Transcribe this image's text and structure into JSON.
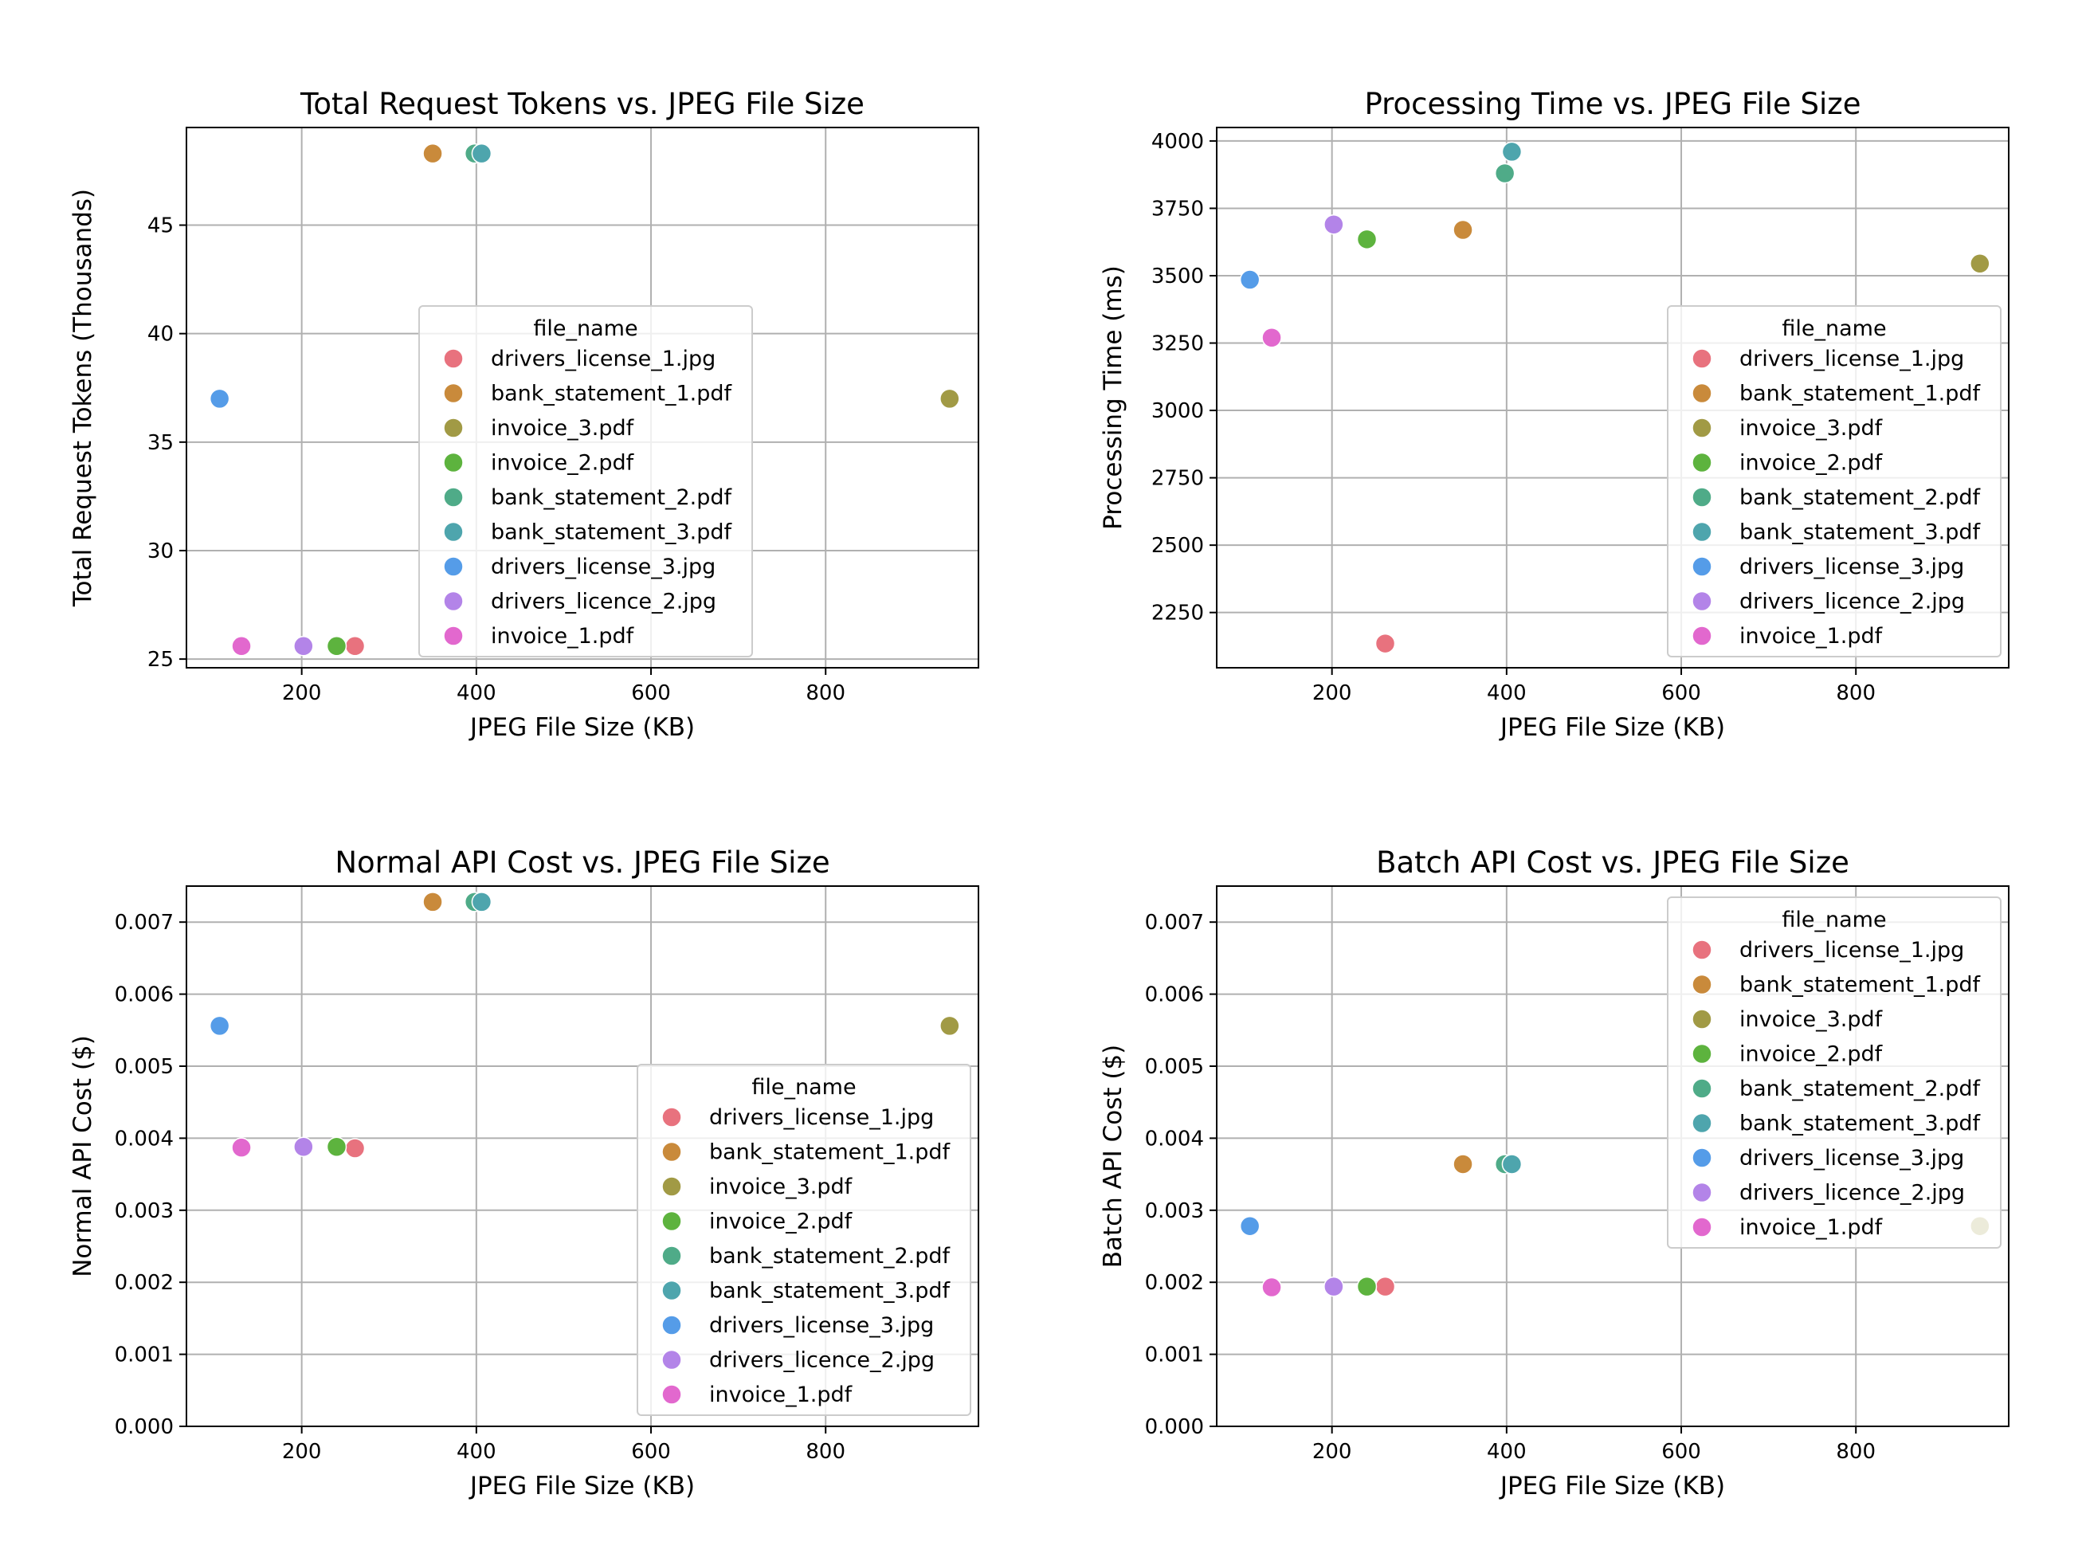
{
  "chart_data": [
    {
      "type": "scatter",
      "title": "Total Request Tokens vs. JPEG File Size",
      "xlabel": "JPEG File Size (KB)",
      "ylabel": "Total Request Tokens (Thousands)",
      "xlim": [
        68,
        975
      ],
      "ylim": [
        24.6,
        49.5
      ],
      "xticks": [
        {
          "v": 200,
          "label": "200"
        },
        {
          "v": 400,
          "label": "400"
        },
        {
          "v": 600,
          "label": "600"
        },
        {
          "v": 800,
          "label": "800"
        }
      ],
      "yticks": [
        {
          "v": 25,
          "label": "25"
        },
        {
          "v": 30,
          "label": "30"
        },
        {
          "v": 35,
          "label": "35"
        },
        {
          "v": 40,
          "label": "40"
        },
        {
          "v": 45,
          "label": "45"
        }
      ],
      "grid": true,
      "legend_title": "file_name",
      "legend_position": "center",
      "series": [
        {
          "name": "drivers_license_1.jpg",
          "color": "#e8727e",
          "x": 261,
          "y": 25.6
        },
        {
          "name": "bank_statement_1.pdf",
          "color": "#c98a3b",
          "x": 350,
          "y": 48.3
        },
        {
          "name": "invoice_3.pdf",
          "color": "#a19a45",
          "x": 942,
          "y": 37.0
        },
        {
          "name": "invoice_2.pdf",
          "color": "#5db33e",
          "x": 240,
          "y": 25.6
        },
        {
          "name": "bank_statement_2.pdf",
          "color": "#4fab88",
          "x": 398,
          "y": 48.3
        },
        {
          "name": "bank_statement_3.pdf",
          "color": "#4ea5ad",
          "x": 406,
          "y": 48.3
        },
        {
          "name": "drivers_license_3.jpg",
          "color": "#559ce8",
          "x": 106,
          "y": 37.0
        },
        {
          "name": "drivers_licence_2.jpg",
          "color": "#b384e8",
          "x": 202,
          "y": 25.6
        },
        {
          "name": "invoice_1.pdf",
          "color": "#e268ce",
          "x": 131,
          "y": 25.6
        }
      ]
    },
    {
      "type": "scatter",
      "title": "Processing Time vs. JPEG File Size",
      "xlabel": "JPEG File Size (KB)",
      "ylabel": "Processing Time (ms)",
      "xlim": [
        68,
        975
      ],
      "ylim": [
        2045,
        4050
      ],
      "xticks": [
        {
          "v": 200,
          "label": "200"
        },
        {
          "v": 400,
          "label": "400"
        },
        {
          "v": 600,
          "label": "600"
        },
        {
          "v": 800,
          "label": "800"
        }
      ],
      "yticks": [
        {
          "v": 2250,
          "label": "2250"
        },
        {
          "v": 2500,
          "label": "2500"
        },
        {
          "v": 2750,
          "label": "2750"
        },
        {
          "v": 3000,
          "label": "3000"
        },
        {
          "v": 3250,
          "label": "3250"
        },
        {
          "v": 3500,
          "label": "3500"
        },
        {
          "v": 3750,
          "label": "3750"
        },
        {
          "v": 4000,
          "label": "4000"
        }
      ],
      "grid": true,
      "legend_title": "file_name",
      "legend_position": "center-right",
      "series": [
        {
          "name": "drivers_license_1.jpg",
          "color": "#e8727e",
          "x": 261,
          "y": 2135
        },
        {
          "name": "bank_statement_1.pdf",
          "color": "#c98a3b",
          "x": 350,
          "y": 3670
        },
        {
          "name": "invoice_3.pdf",
          "color": "#a19a45",
          "x": 942,
          "y": 3545
        },
        {
          "name": "invoice_2.pdf",
          "color": "#5db33e",
          "x": 240,
          "y": 3635
        },
        {
          "name": "bank_statement_2.pdf",
          "color": "#4fab88",
          "x": 398,
          "y": 3880
        },
        {
          "name": "bank_statement_3.pdf",
          "color": "#4ea5ad",
          "x": 406,
          "y": 3960
        },
        {
          "name": "drivers_license_3.jpg",
          "color": "#559ce8",
          "x": 106,
          "y": 3485
        },
        {
          "name": "drivers_licence_2.jpg",
          "color": "#b384e8",
          "x": 202,
          "y": 3690
        },
        {
          "name": "invoice_1.pdf",
          "color": "#e268ce",
          "x": 131,
          "y": 3270
        }
      ]
    },
    {
      "type": "scatter",
      "title": "Normal API Cost vs. JPEG File Size",
      "xlabel": "JPEG File Size (KB)",
      "ylabel": "Normal API Cost ($)",
      "xlim": [
        68,
        975
      ],
      "ylim": [
        0,
        0.0075
      ],
      "xticks": [
        {
          "v": 200,
          "label": "200"
        },
        {
          "v": 400,
          "label": "400"
        },
        {
          "v": 600,
          "label": "600"
        },
        {
          "v": 800,
          "label": "800"
        }
      ],
      "yticks": [
        {
          "v": 0,
          "label": "0.000"
        },
        {
          "v": 0.001,
          "label": "0.001"
        },
        {
          "v": 0.002,
          "label": "0.002"
        },
        {
          "v": 0.003,
          "label": "0.003"
        },
        {
          "v": 0.004,
          "label": "0.004"
        },
        {
          "v": 0.005,
          "label": "0.005"
        },
        {
          "v": 0.006,
          "label": "0.006"
        },
        {
          "v": 0.007,
          "label": "0.007"
        }
      ],
      "grid": true,
      "legend_title": "file_name",
      "legend_position": "lower-right",
      "series": [
        {
          "name": "drivers_license_1.jpg",
          "color": "#e8727e",
          "x": 261,
          "y": 0.00386
        },
        {
          "name": "bank_statement_1.pdf",
          "color": "#c98a3b",
          "x": 350,
          "y": 0.00728
        },
        {
          "name": "invoice_3.pdf",
          "color": "#a19a45",
          "x": 942,
          "y": 0.00556
        },
        {
          "name": "invoice_2.pdf",
          "color": "#5db33e",
          "x": 240,
          "y": 0.00388
        },
        {
          "name": "bank_statement_2.pdf",
          "color": "#4fab88",
          "x": 398,
          "y": 0.00728
        },
        {
          "name": "bank_statement_3.pdf",
          "color": "#4ea5ad",
          "x": 406,
          "y": 0.00728
        },
        {
          "name": "drivers_license_3.jpg",
          "color": "#559ce8",
          "x": 106,
          "y": 0.00556
        },
        {
          "name": "drivers_licence_2.jpg",
          "color": "#b384e8",
          "x": 202,
          "y": 0.00388
        },
        {
          "name": "invoice_1.pdf",
          "color": "#e268ce",
          "x": 131,
          "y": 0.00387
        }
      ]
    },
    {
      "type": "scatter",
      "title": "Batch API Cost vs. JPEG File Size",
      "xlabel": "JPEG File Size (KB)",
      "ylabel": "Batch API Cost ($)",
      "xlim": [
        68,
        975
      ],
      "ylim": [
        0,
        0.0075
      ],
      "xticks": [
        {
          "v": 200,
          "label": "200"
        },
        {
          "v": 400,
          "label": "400"
        },
        {
          "v": 600,
          "label": "600"
        },
        {
          "v": 800,
          "label": "800"
        }
      ],
      "yticks": [
        {
          "v": 0,
          "label": "0.000"
        },
        {
          "v": 0.001,
          "label": "0.001"
        },
        {
          "v": 0.002,
          "label": "0.002"
        },
        {
          "v": 0.003,
          "label": "0.003"
        },
        {
          "v": 0.004,
          "label": "0.004"
        },
        {
          "v": 0.005,
          "label": "0.005"
        },
        {
          "v": 0.006,
          "label": "0.006"
        },
        {
          "v": 0.007,
          "label": "0.007"
        }
      ],
      "grid": true,
      "legend_title": "file_name",
      "legend_position": "upper-right",
      "series": [
        {
          "name": "drivers_license_1.jpg",
          "color": "#e8727e",
          "x": 261,
          "y": 0.00194
        },
        {
          "name": "bank_statement_1.pdf",
          "color": "#c98a3b",
          "x": 350,
          "y": 0.00364
        },
        {
          "name": "invoice_3.pdf",
          "color": "#a19a45",
          "x": 942,
          "y": 0.00278
        },
        {
          "name": "invoice_2.pdf",
          "color": "#5db33e",
          "x": 240,
          "y": 0.00194
        },
        {
          "name": "bank_statement_2.pdf",
          "color": "#4fab88",
          "x": 398,
          "y": 0.00364
        },
        {
          "name": "bank_statement_3.pdf",
          "color": "#4ea5ad",
          "x": 406,
          "y": 0.00364
        },
        {
          "name": "drivers_license_3.jpg",
          "color": "#559ce8",
          "x": 106,
          "y": 0.00278
        },
        {
          "name": "drivers_licence_2.jpg",
          "color": "#b384e8",
          "x": 202,
          "y": 0.00194
        },
        {
          "name": "invoice_1.pdf",
          "color": "#e268ce",
          "x": 131,
          "y": 0.00193
        }
      ]
    }
  ]
}
